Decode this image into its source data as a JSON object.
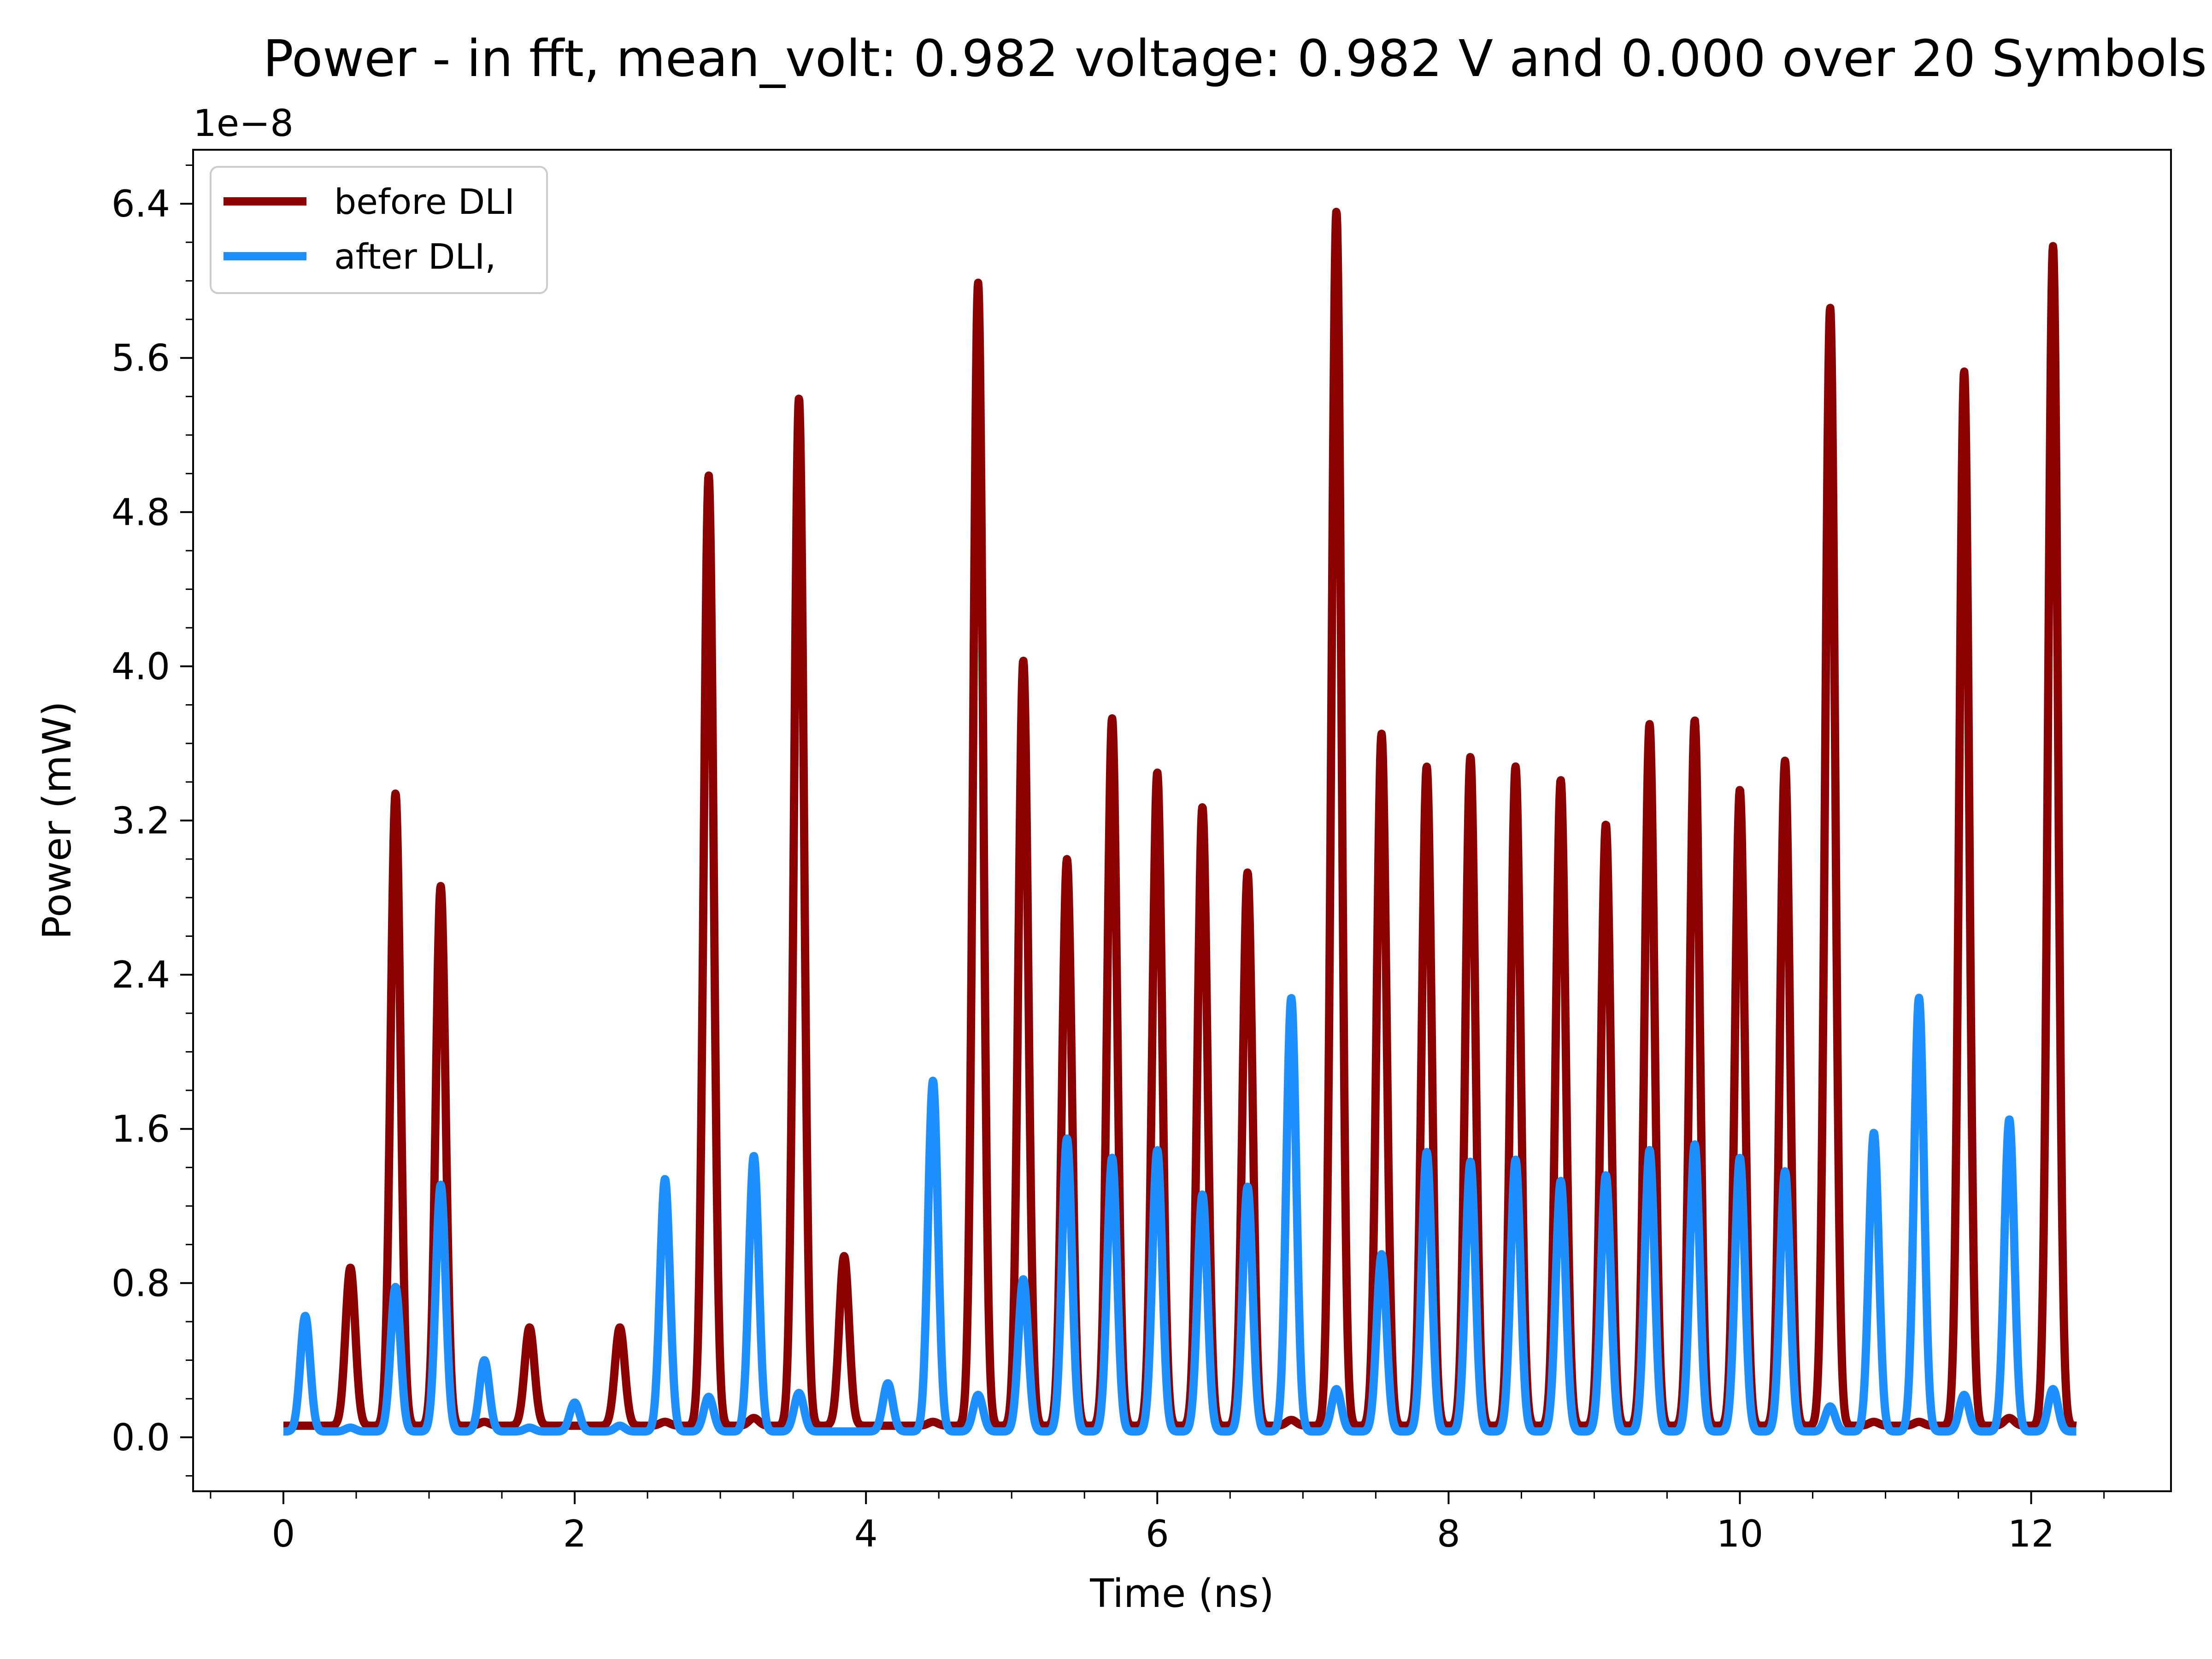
{
  "chart_data": {
    "type": "line",
    "title": "Power - in fft, mean_volt: 0.982 voltage: 0.982 V and 0.000 over 20 Symbols",
    "xlabel": "Time (ns)",
    "ylabel": "Power (mW)",
    "y_offset_label": "1e−8",
    "xlim": [
      -0.62,
      12.96
    ],
    "ylim": [
      -0.28,
      6.68
    ],
    "x_ticks": [
      0,
      2,
      4,
      6,
      8,
      10,
      12
    ],
    "y_ticks": [
      0.0,
      0.8,
      1.6,
      2.4,
      3.2,
      4.0,
      4.8,
      5.6,
      6.4
    ],
    "x_tick_labels": [
      "0",
      "2",
      "4",
      "6",
      "8",
      "10",
      "12"
    ],
    "y_tick_labels": [
      "0.0",
      "0.8",
      "1.6",
      "2.4",
      "3.2",
      "4.0",
      "4.8",
      "5.6",
      "6.4"
    ],
    "grid": false,
    "legend_position": "top-left",
    "pulse_period_ns": 0.3077,
    "x_range": [
      0,
      12.31
    ],
    "series": [
      {
        "name": "before DLI",
        "color": "#8b0000",
        "baseline": 0.06,
        "peak_times": [
          0.46,
          0.77,
          1.08,
          1.38,
          1.69,
          2.0,
          2.31,
          2.62,
          2.92,
          3.23,
          3.54,
          3.85,
          4.15,
          4.46,
          4.77,
          5.08,
          5.38,
          5.69,
          6.0,
          6.31,
          6.62,
          6.92,
          7.23,
          7.54,
          7.85,
          8.15,
          8.46,
          8.77,
          9.08,
          9.38,
          9.69,
          10.0,
          10.31,
          10.62,
          10.92,
          11.23,
          11.54,
          11.85,
          12.15
        ],
        "peak_values": [
          0.88,
          3.34,
          2.86,
          0.08,
          0.57,
          0.06,
          0.57,
          0.08,
          4.99,
          0.1,
          5.39,
          0.94,
          0.06,
          0.08,
          5.99,
          4.03,
          3.0,
          3.73,
          3.45,
          3.27,
          2.93,
          0.09,
          6.36,
          3.65,
          3.48,
          3.53,
          3.48,
          3.41,
          3.18,
          3.7,
          3.72,
          3.36,
          3.51,
          5.86,
          0.08,
          0.08,
          5.53,
          0.1,
          6.18
        ]
      },
      {
        "name": "after DLI,",
        "color": "#1e8fff",
        "baseline": 0.03,
        "peak_times": [
          0.15,
          0.46,
          0.77,
          1.08,
          1.38,
          1.69,
          2.0,
          2.31,
          2.62,
          2.92,
          3.23,
          3.54,
          3.85,
          4.15,
          4.46,
          4.77,
          5.08,
          5.38,
          5.69,
          6.0,
          6.31,
          6.62,
          6.92,
          7.23,
          7.54,
          7.85,
          8.15,
          8.46,
          8.77,
          9.08,
          9.38,
          9.69,
          10.0,
          10.31,
          10.62,
          10.92,
          11.23,
          11.54,
          11.85,
          12.15
        ],
        "peak_values": [
          0.63,
          0.05,
          0.78,
          1.31,
          0.4,
          0.05,
          0.18,
          0.06,
          1.34,
          0.21,
          1.46,
          0.23,
          0.03,
          0.28,
          1.85,
          0.22,
          0.82,
          1.55,
          1.45,
          1.49,
          1.26,
          1.3,
          2.28,
          0.25,
          0.95,
          1.48,
          1.43,
          1.44,
          1.33,
          1.36,
          1.49,
          1.52,
          1.45,
          1.38,
          0.16,
          1.58,
          2.28,
          0.22,
          1.65,
          0.25
        ]
      }
    ]
  }
}
